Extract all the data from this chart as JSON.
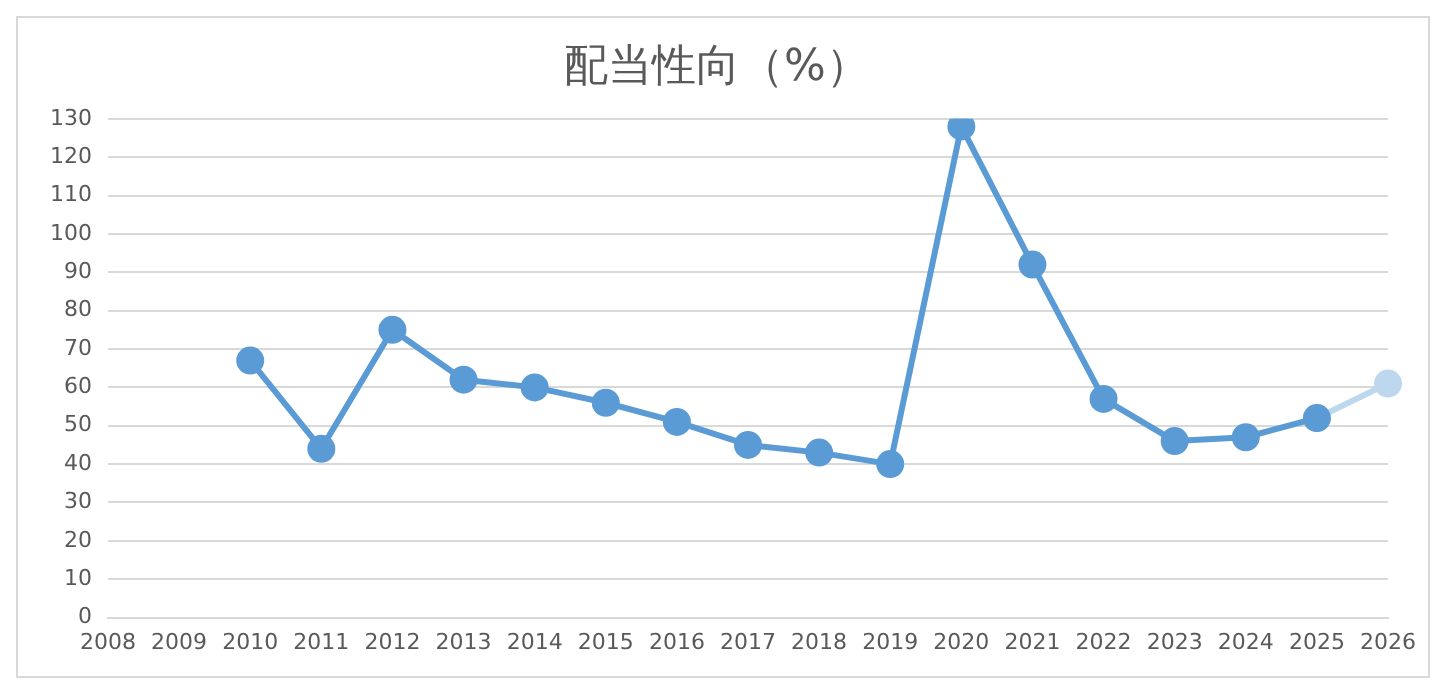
{
  "chart_data": {
    "type": "line",
    "title": "配当性向（%）",
    "categories": [
      "2008",
      "2009",
      "2010",
      "2011",
      "2012",
      "2013",
      "2014",
      "2015",
      "2016",
      "2017",
      "2018",
      "2019",
      "2020",
      "2021",
      "2022",
      "2023",
      "2024",
      "2025",
      "2026"
    ],
    "series": [
      {
        "color": "#5b9bd5",
        "values": [
          null,
          null,
          67,
          44,
          75,
          62,
          60,
          56,
          51,
          45,
          43,
          40,
          128,
          92,
          57,
          46,
          47,
          52,
          null
        ]
      },
      {
        "color": "#bdd7ee",
        "values": [
          null,
          null,
          null,
          null,
          null,
          null,
          null,
          null,
          null,
          null,
          null,
          null,
          null,
          null,
          null,
          null,
          null,
          52,
          61
        ]
      }
    ],
    "ylim": [
      0,
      130
    ],
    "yticks": [
      0,
      10,
      20,
      30,
      40,
      50,
      60,
      70,
      80,
      90,
      100,
      110,
      120,
      130
    ],
    "grid": "y",
    "legend": false,
    "marker": "circle",
    "line_style": "solid"
  }
}
